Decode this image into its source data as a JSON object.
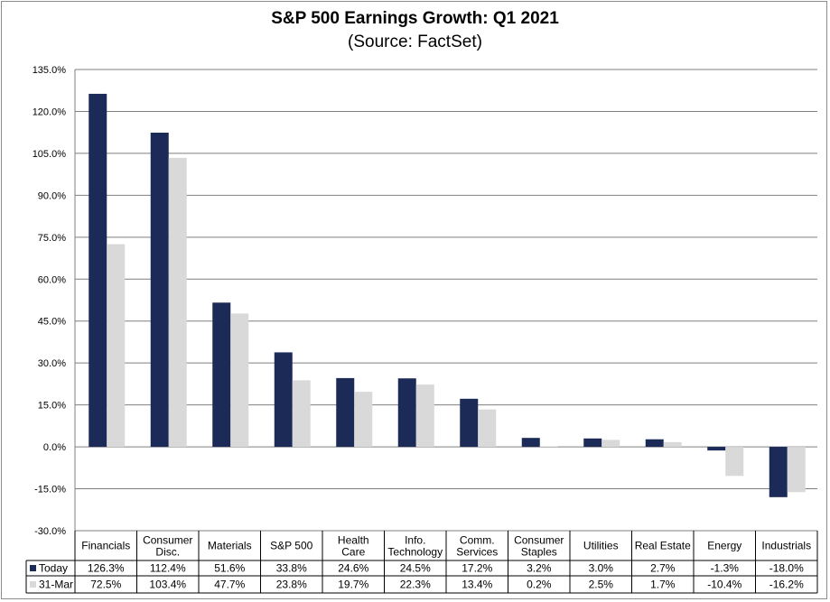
{
  "chart_data": {
    "type": "bar",
    "title": "S&P 500 Earnings Growth: Q1 2021",
    "subtitle": "(Source: FactSet)",
    "categories": [
      "Financials",
      "Consumer Disc.",
      "Materials",
      "S&P 500",
      "Health Care",
      "Info. Technology",
      "Comm. Services",
      "Consumer Staples",
      "Utilities",
      "Real Estate",
      "Energy",
      "Industrials"
    ],
    "category_lines": [
      [
        "Financials"
      ],
      [
        "Consumer",
        "Disc."
      ],
      [
        "Materials"
      ],
      [
        "S&P 500"
      ],
      [
        "Health",
        "Care"
      ],
      [
        "Info.",
        "Technology"
      ],
      [
        "Comm.",
        "Services"
      ],
      [
        "Consumer",
        "Staples"
      ],
      [
        "Utilities"
      ],
      [
        "Real Estate"
      ],
      [
        "Energy"
      ],
      [
        "Industrials"
      ]
    ],
    "series": [
      {
        "name": "Today",
        "color": "#1b2a56",
        "values": [
          126.3,
          112.4,
          51.6,
          33.8,
          24.6,
          24.5,
          17.2,
          3.2,
          3.0,
          2.7,
          -1.3,
          -18.0
        ],
        "labels": [
          "126.3%",
          "112.4%",
          "51.6%",
          "33.8%",
          "24.6%",
          "24.5%",
          "17.2%",
          "3.2%",
          "3.0%",
          "2.7%",
          "-1.3%",
          "-18.0%"
        ]
      },
      {
        "name": "31-Mar",
        "color": "#d9d9d9",
        "values": [
          72.5,
          103.4,
          47.7,
          23.8,
          19.7,
          22.3,
          13.4,
          0.2,
          2.5,
          1.7,
          -10.4,
          -16.2
        ],
        "labels": [
          "72.5%",
          "103.4%",
          "47.7%",
          "23.8%",
          "19.7%",
          "22.3%",
          "13.4%",
          "0.2%",
          "2.5%",
          "1.7%",
          "-10.4%",
          "-16.2%"
        ]
      }
    ],
    "ylim": [
      -30,
      135
    ],
    "yticks": [
      135,
      120,
      105,
      90,
      75,
      60,
      45,
      30,
      15,
      0,
      -15,
      -30
    ],
    "ytick_labels": [
      "135.0%",
      "120.0%",
      "105.0%",
      "90.0%",
      "75.0%",
      "60.0%",
      "45.0%",
      "30.0%",
      "15.0%",
      "0.0%",
      "-15.0%",
      "-30.0%"
    ],
    "grid": true,
    "legend": "data-table",
    "xlabel": "",
    "ylabel": ""
  }
}
